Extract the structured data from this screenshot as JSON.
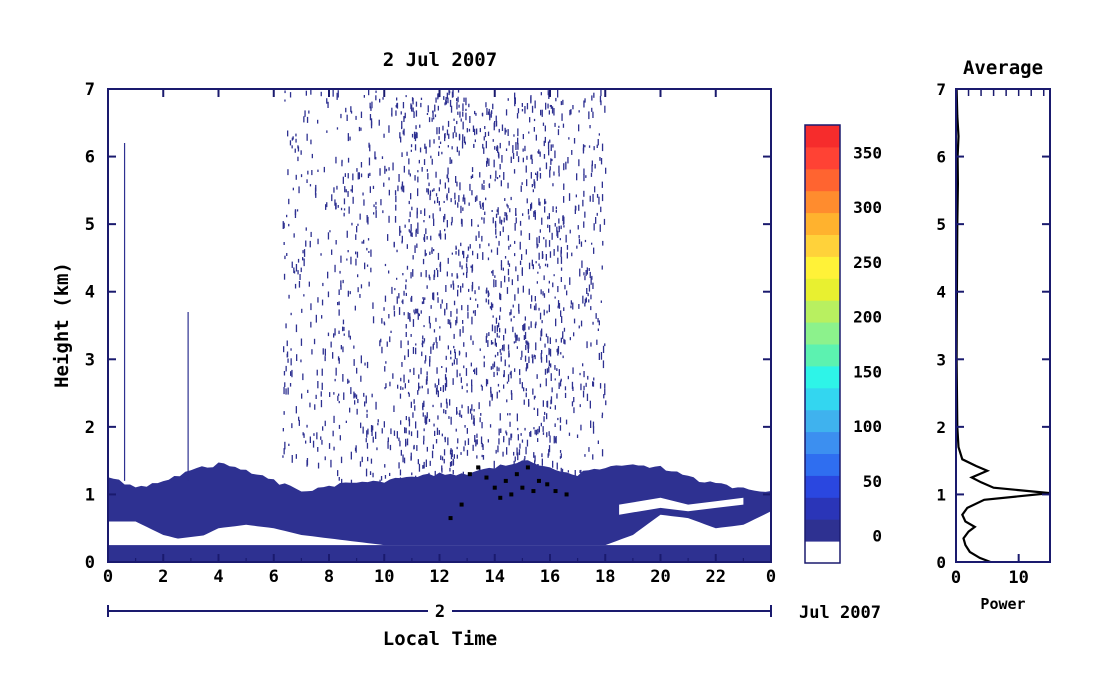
{
  "chart_data": [
    {
      "type": "heatmap",
      "title": "2 Jul 2007",
      "xlabel": "Local Time",
      "ylabel": "Height (km)",
      "xlim": [
        0,
        24
      ],
      "ylim": [
        0,
        7
      ],
      "xticks": [
        "0",
        "2",
        "4",
        "6",
        "8",
        "10",
        "12",
        "14",
        "16",
        "18",
        "20",
        "22",
        "0"
      ],
      "yticks": [
        "0",
        "1",
        "2",
        "3",
        "4",
        "5",
        "6",
        "7"
      ],
      "date_axis": {
        "day_label": "2",
        "month_label": "Jul 2007"
      },
      "layers": {
        "surface_layer_km": [
          0,
          0.25
        ],
        "boundary_layer_top_km": [
          [
            0,
            1.25
          ],
          [
            1,
            1.1
          ],
          [
            2,
            1.2
          ],
          [
            3,
            1.35
          ],
          [
            4,
            1.45
          ],
          [
            5,
            1.35
          ],
          [
            6,
            1.2
          ],
          [
            7,
            1.05
          ],
          [
            8,
            1.1
          ],
          [
            9,
            1.2
          ],
          [
            10,
            1.2
          ],
          [
            11,
            1.25
          ],
          [
            12,
            1.3
          ],
          [
            13,
            1.3
          ],
          [
            14,
            1.4
          ],
          [
            15,
            1.5
          ],
          [
            16,
            1.4
          ],
          [
            17,
            1.3
          ],
          [
            18,
            1.4
          ],
          [
            19,
            1.45
          ],
          [
            20,
            1.4
          ],
          [
            21,
            1.25
          ],
          [
            22,
            1.15
          ],
          [
            23,
            1.1
          ],
          [
            24,
            1.05
          ]
        ],
        "boundary_layer_bottom_km": [
          [
            0,
            0.6
          ],
          [
            1,
            0.6
          ],
          [
            2,
            0.4
          ],
          [
            3,
            0.3
          ],
          [
            4,
            0.5
          ],
          [
            5,
            0.55
          ],
          [
            6,
            0.5
          ],
          [
            7,
            0.4
          ],
          [
            8,
            0.35
          ],
          [
            9,
            0.3
          ],
          [
            10,
            0.25
          ],
          [
            11,
            0.25
          ],
          [
            12,
            0.25
          ],
          [
            14,
            0.25
          ],
          [
            16,
            0.25
          ],
          [
            18,
            0.25
          ],
          [
            19,
            0.4
          ],
          [
            20,
            0.7
          ],
          [
            21,
            0.65
          ],
          [
            22,
            0.5
          ],
          [
            23,
            0.55
          ],
          [
            24,
            0.75
          ]
        ],
        "gap_band_km": [
          [
            0,
            0.45,
            0.55
          ],
          [
            2,
            0.3,
            0.32
          ],
          [
            4,
            0.25,
            0.42
          ],
          [
            6,
            0.3,
            0.45
          ],
          [
            7,
            0.25,
            0.32
          ],
          [
            8,
            0.25,
            0.28
          ],
          [
            18.5,
            0.7,
            0.85
          ],
          [
            20,
            0.8,
            0.95
          ],
          [
            21,
            0.75,
            0.85
          ],
          [
            22,
            0.8,
            0.9
          ],
          [
            23,
            0.85,
            0.95
          ]
        ],
        "convective_noise_hours": [
          6.3,
          18.0
        ],
        "convective_noise_dense_hours": [
          10.5,
          16.5
        ],
        "cloud_points": [
          [
            12.4,
            0.65
          ],
          [
            12.8,
            0.85
          ],
          [
            13.1,
            1.3
          ],
          [
            13.4,
            1.4
          ],
          [
            13.7,
            1.25
          ],
          [
            14.0,
            1.1
          ],
          [
            14.2,
            0.95
          ],
          [
            14.4,
            1.2
          ],
          [
            14.6,
            1.0
          ],
          [
            14.8,
            1.3
          ],
          [
            15.0,
            1.1
          ],
          [
            15.2,
            1.4
          ],
          [
            15.4,
            1.05
          ],
          [
            15.6,
            1.2
          ],
          [
            15.9,
            1.15
          ],
          [
            16.2,
            1.05
          ],
          [
            16.6,
            1.0
          ]
        ],
        "spikes": [
          [
            0.6,
            6.2
          ],
          [
            2.9,
            3.7
          ]
        ]
      }
    },
    {
      "type": "colorbar",
      "ticks": [
        "0",
        "50",
        "100",
        "150",
        "200",
        "250",
        "300",
        "350"
      ],
      "range": [
        -25,
        375
      ],
      "colors": [
        "#ffffff",
        "#2e3191",
        "#2a35b8",
        "#2a47e0",
        "#2f6ef0",
        "#3c8ff0",
        "#3fb2ee",
        "#33d6f0",
        "#2ef4e8",
        "#5cf2b0",
        "#8cf28c",
        "#b8f060",
        "#e8f030",
        "#fff238",
        "#ffd23a",
        "#ffb22e",
        "#ff8c2e",
        "#ff6430",
        "#ff4234",
        "#f62c2c"
      ]
    },
    {
      "type": "line",
      "title": "Average",
      "xlabel": "Power",
      "ylabel": "",
      "xlim": [
        0,
        15
      ],
      "ylim": [
        0,
        7
      ],
      "xticks": [
        "0",
        "10"
      ],
      "yticks": [
        "0",
        "1",
        "2",
        "3",
        "4",
        "5",
        "6",
        "7"
      ],
      "series": [
        {
          "points": [
            [
              5.5,
              0.0
            ],
            [
              3.8,
              0.06
            ],
            [
              2.2,
              0.15
            ],
            [
              1.5,
              0.25
            ],
            [
              1.2,
              0.35
            ],
            [
              2.0,
              0.45
            ],
            [
              3.0,
              0.52
            ],
            [
              1.5,
              0.6
            ],
            [
              1.0,
              0.7
            ],
            [
              1.8,
              0.8
            ],
            [
              4.5,
              0.92
            ],
            [
              15.0,
              1.02
            ],
            [
              6.0,
              1.1
            ],
            [
              4.0,
              1.18
            ],
            [
              2.5,
              1.25
            ],
            [
              5.0,
              1.35
            ],
            [
              3.2,
              1.42
            ],
            [
              1.0,
              1.52
            ],
            [
              0.4,
              1.7
            ],
            [
              0.2,
              2.0
            ],
            [
              0.1,
              3.0
            ],
            [
              0.15,
              4.0
            ],
            [
              0.2,
              5.0
            ],
            [
              0.3,
              5.6
            ],
            [
              0.25,
              6.0
            ],
            [
              0.4,
              6.3
            ],
            [
              0.2,
              6.6
            ],
            [
              0.1,
              7.0
            ]
          ]
        }
      ]
    }
  ]
}
